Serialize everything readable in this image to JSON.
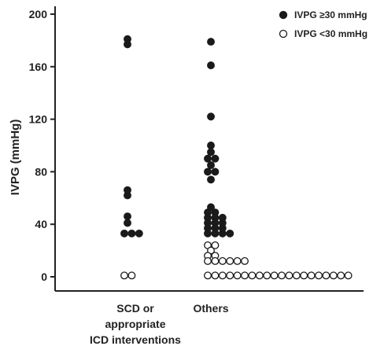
{
  "chart_data": {
    "type": "scatter",
    "title": "",
    "ylabel": "IVPG (mmHg)",
    "xlabel": "",
    "ylim": [
      0,
      200
    ],
    "yticks": [
      0,
      40,
      80,
      120,
      160,
      200
    ],
    "categories": [
      {
        "lines": [
          "SCD or",
          "appropriate",
          "ICD interventions"
        ]
      },
      {
        "lines": [
          "Others"
        ]
      }
    ],
    "legend": {
      "position": "top-right",
      "entries": [
        {
          "label": "IVPG ≥30 mmHg",
          "style": "filled"
        },
        {
          "label": "IVPG <30 mmHg",
          "style": "open"
        }
      ]
    },
    "colors": {
      "marker": "#1a1a1a",
      "axis": "#222222"
    },
    "series": [
      {
        "style": "filled",
        "points": [
          {
            "category": 0,
            "y": 181,
            "count": 1
          },
          {
            "category": 0,
            "y": 177,
            "count": 1
          },
          {
            "category": 0,
            "y": 66,
            "count": 1
          },
          {
            "category": 0,
            "y": 62,
            "count": 1
          },
          {
            "category": 0,
            "y": 46,
            "count": 1
          },
          {
            "category": 0,
            "y": 41,
            "count": 1
          },
          {
            "category": 0,
            "y": 33,
            "count": 3
          },
          {
            "category": 1,
            "y": 179,
            "count": 1
          },
          {
            "category": 1,
            "y": 161,
            "count": 1
          },
          {
            "category": 1,
            "y": 122,
            "count": 1
          },
          {
            "category": 1,
            "y": 100,
            "count": 1
          },
          {
            "category": 1,
            "y": 95,
            "count": 1
          },
          {
            "category": 1,
            "y": 90,
            "count": 2
          },
          {
            "category": 1,
            "y": 85,
            "count": 1
          },
          {
            "category": 1,
            "y": 80,
            "count": 2
          },
          {
            "category": 1,
            "y": 74,
            "count": 1
          },
          {
            "category": 1,
            "y": 53,
            "count": 1
          },
          {
            "category": 1,
            "y": 49,
            "count": 2
          },
          {
            "category": 1,
            "y": 45,
            "count": 3
          },
          {
            "category": 1,
            "y": 41,
            "count": 3
          },
          {
            "category": 1,
            "y": 37,
            "count": 3
          },
          {
            "category": 1,
            "y": 33,
            "count": 4
          }
        ]
      },
      {
        "style": "open",
        "points": [
          {
            "category": 0,
            "y": 1,
            "count": 2
          },
          {
            "category": 1,
            "y": 24,
            "count": 2
          },
          {
            "category": 1,
            "y": 20,
            "count": 1
          },
          {
            "category": 1,
            "y": 16,
            "count": 2
          },
          {
            "category": 1,
            "y": 12,
            "count": 6
          },
          {
            "category": 1,
            "y": 1,
            "count": 20
          }
        ]
      }
    ]
  }
}
